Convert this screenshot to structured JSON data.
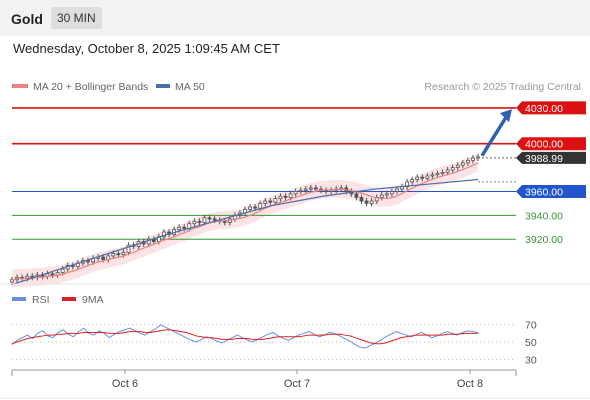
{
  "header": {
    "symbol": "Gold",
    "timeframe": "30 MIN"
  },
  "datetime": "Wednesday, October 8, 2025 1:09:45 AM CET",
  "legend": {
    "ma20": "MA 20 + Bollinger Bands",
    "ma50": "MA 50",
    "copyright": "Research © 2025 Trading Central",
    "rsi": "RSI",
    "rsi_ma": "9MA"
  },
  "colors": {
    "ma20": "#f08080",
    "ma50": "#4a6fa5",
    "bands": "#fadadd",
    "red_level": "#dd1111",
    "blue_level": "#2255cc",
    "green_level": "#339933",
    "candle": "#555555",
    "price_tag": "#333333",
    "arrow": "#3060b0",
    "rsi": "#6b8de3",
    "rsi_ma": "#dd2222"
  },
  "chart_data": [
    {
      "type": "candlestick",
      "x_labels": [
        "Oct 6",
        "Oct 7",
        "Oct 8"
      ],
      "ylim": [
        3890,
        4040
      ],
      "last_price": "3988.99",
      "levels": [
        {
          "label": "4030.00",
          "value": 4030,
          "kind": "resistance"
        },
        {
          "label": "4000.00",
          "value": 4000,
          "kind": "resistance"
        },
        {
          "label": "3960.00",
          "value": 3960,
          "kind": "pivot"
        },
        {
          "label": "3940.00",
          "value": 3940,
          "kind": "support"
        },
        {
          "label": "3920.00",
          "value": 3920,
          "kind": "support"
        }
      ],
      "closes": [
        3886,
        3888,
        3887,
        3889,
        3888,
        3890,
        3889,
        3891,
        3890,
        3892,
        3895,
        3898,
        3897,
        3900,
        3902,
        3901,
        3904,
        3905,
        3903,
        3906,
        3908,
        3907,
        3909,
        3915,
        3914,
        3918,
        3916,
        3920,
        3918,
        3922,
        3926,
        3924,
        3928,
        3930,
        3929,
        3933,
        3935,
        3934,
        3938,
        3937,
        3936,
        3935,
        3934,
        3937,
        3940,
        3942,
        3945,
        3947,
        3946,
        3950,
        3952,
        3951,
        3954,
        3956,
        3955,
        3958,
        3960,
        3961,
        3962,
        3963,
        3962,
        3961,
        3960,
        3961,
        3962,
        3963,
        3960,
        3958,
        3955,
        3952,
        3950,
        3952,
        3955,
        3957,
        3958,
        3960,
        3962,
        3964,
        3968,
        3970,
        3972,
        3971,
        3973,
        3974,
        3975,
        3976,
        3978,
        3980,
        3982,
        3984,
        3986,
        3988,
        3989
      ],
      "ma50": [
        3882,
        3896,
        3910,
        3924,
        3936,
        3948,
        3956,
        3962,
        3966,
        3970
      ]
    },
    {
      "type": "line",
      "name": "RSI",
      "y_ticks": [
        70,
        50,
        30
      ],
      "ylim": [
        20,
        80
      ],
      "rsi": [
        47,
        52,
        55,
        58,
        54,
        60,
        63,
        57,
        55,
        61,
        64,
        59,
        56,
        62,
        66,
        60,
        58,
        63,
        60,
        55,
        59,
        62,
        64,
        66,
        63,
        60,
        58,
        62,
        65,
        70,
        67,
        64,
        61,
        58,
        55,
        52,
        50,
        53,
        56,
        54,
        51,
        49,
        52,
        55,
        58,
        55,
        52,
        50,
        53,
        56,
        59,
        61,
        57,
        54,
        52,
        55,
        58,
        60,
        62,
        59,
        56,
        58,
        61,
        60,
        57,
        54,
        51,
        47,
        44,
        43,
        46,
        49,
        52,
        56,
        59,
        62,
        60,
        58,
        56,
        59,
        61,
        58,
        55,
        57,
        60,
        62,
        60,
        58,
        61,
        63,
        62,
        61
      ],
      "ma9": [
        48,
        50,
        52,
        54,
        55,
        56,
        57,
        58,
        58,
        59,
        59,
        60,
        60,
        60,
        61,
        61,
        61,
        61,
        61,
        60,
        60,
        60,
        61,
        62,
        62,
        62,
        61,
        61,
        62,
        63,
        64,
        64,
        63,
        62,
        61,
        59,
        57,
        56,
        55,
        55,
        54,
        53,
        53,
        53,
        54,
        54,
        54,
        53,
        53,
        53,
        54,
        55,
        56,
        56,
        56,
        56,
        56,
        57,
        58,
        58,
        58,
        58,
        59,
        59,
        59,
        58,
        57,
        55,
        53,
        51,
        49,
        48,
        48,
        49,
        51,
        53,
        55,
        56,
        57,
        58,
        58,
        58,
        58,
        58,
        58,
        59,
        59,
        59,
        60,
        60,
        60,
        60
      ]
    }
  ]
}
